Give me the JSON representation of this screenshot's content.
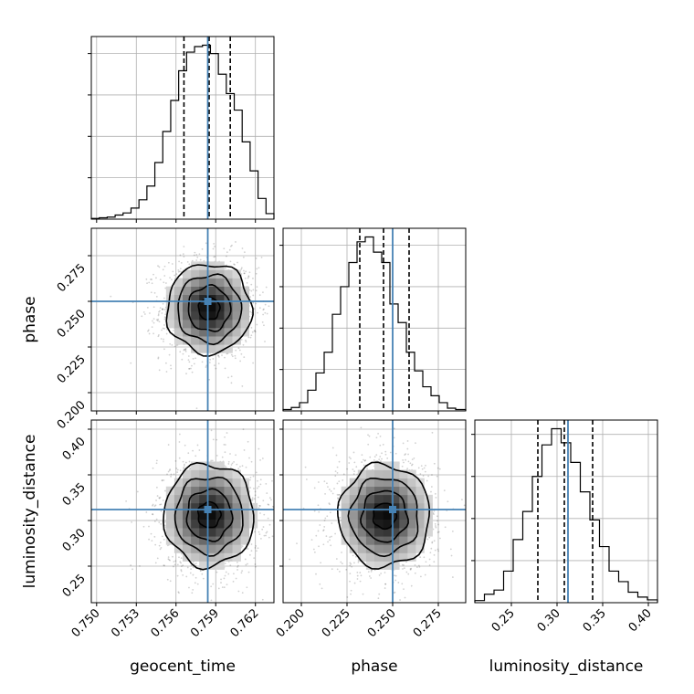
{
  "chart_data": {
    "type": "corner",
    "parameters": [
      "geocent_time",
      "phase",
      "luminosity_distance"
    ],
    "injected_values": {
      "geocent_time": 0.7584,
      "phase": 0.25,
      "luminosity_distance": 0.312
    },
    "quantiles": {
      "geocent_time": [
        0.7566,
        0.7585,
        0.7601
      ],
      "phase": [
        0.232,
        0.245,
        0.259
      ],
      "luminosity_distance": [
        0.279,
        0.308,
        0.339
      ]
    },
    "axes": {
      "geocent_time": {
        "range": [
          0.7496,
          0.7634
        ],
        "ticks": [
          0.75,
          0.753,
          0.756,
          0.759,
          0.762
        ],
        "tick_labels": [
          "0.750",
          "0.753",
          "0.756",
          "0.759",
          "0.762"
        ]
      },
      "phase": {
        "range": [
          0.19,
          0.29
        ],
        "ticks": [
          0.2,
          0.225,
          0.25,
          0.275
        ],
        "tick_labels": [
          "0.200",
          "0.225",
          "0.250",
          "0.275"
        ]
      },
      "luminosity_distance": {
        "range": [
          0.21,
          0.41
        ],
        "ticks": [
          0.25,
          0.3,
          0.35,
          0.4
        ],
        "tick_labels": [
          "0.25",
          "0.30",
          "0.35",
          "0.40"
        ]
      }
    },
    "grid": true,
    "hist_1d": {
      "geocent_time": {
        "bins": [
          0.7496,
          0.7502,
          0.7508,
          0.7514,
          0.752,
          0.7526,
          0.7532,
          0.7538,
          0.7544,
          0.755,
          0.7556,
          0.7562,
          0.7568,
          0.7574,
          0.758,
          0.7586,
          0.7592,
          0.7598,
          0.7604,
          0.761,
          0.7616,
          0.7622,
          0.7628,
          0.7634
        ],
        "counts": [
          1,
          2,
          3,
          6,
          9,
          16,
          28,
          48,
          82,
          127,
          172,
          215,
          242,
          250,
          252,
          240,
          210,
          182,
          158,
          112,
          70,
          30,
          8
        ]
      },
      "phase": {
        "bins": [
          0.19,
          0.1945,
          0.199,
          0.2035,
          0.208,
          0.2125,
          0.217,
          0.2215,
          0.226,
          0.2305,
          0.235,
          0.2395,
          0.244,
          0.2485,
          0.253,
          0.2575,
          0.262,
          0.2665,
          0.271,
          0.2755,
          0.28,
          0.2845,
          0.29
        ],
        "counts": [
          2,
          5,
          12,
          30,
          55,
          85,
          140,
          180,
          215,
          245,
          252,
          230,
          215,
          155,
          128,
          85,
          58,
          35,
          22,
          12,
          4,
          2
        ]
      },
      "luminosity_distance": {
        "bins": [
          0.21,
          0.2205,
          0.231,
          0.2415,
          0.252,
          0.2625,
          0.273,
          0.2835,
          0.294,
          0.3045,
          0.315,
          0.3255,
          0.336,
          0.3465,
          0.357,
          0.3675,
          0.378,
          0.3885,
          0.399,
          0.41
        ],
        "counts": [
          3,
          12,
          18,
          45,
          90,
          130,
          180,
          225,
          248,
          228,
          200,
          158,
          118,
          80,
          45,
          30,
          15,
          8,
          4
        ]
      }
    },
    "hist_2d": [
      {
        "x": "geocent_time",
        "y": "phase",
        "center": [
          0.7585,
          0.246
        ],
        "sigma": [
          0.0016,
          0.0123
        ],
        "contour_levels": [
          0.5,
          1.0,
          1.5,
          2.0
        ]
      },
      {
        "x": "geocent_time",
        "y": "luminosity_distance",
        "center": [
          0.7585,
          0.306
        ],
        "sigma": [
          0.0017,
          0.028
        ],
        "contour_levels": [
          0.5,
          1.0,
          1.5,
          2.0
        ]
      },
      {
        "x": "phase",
        "y": "luminosity_distance",
        "center": [
          0.2455,
          0.305
        ],
        "sigma": [
          0.0125,
          0.028
        ],
        "contour_levels": [
          0.5,
          1.0,
          1.5,
          2.0
        ]
      }
    ]
  }
}
